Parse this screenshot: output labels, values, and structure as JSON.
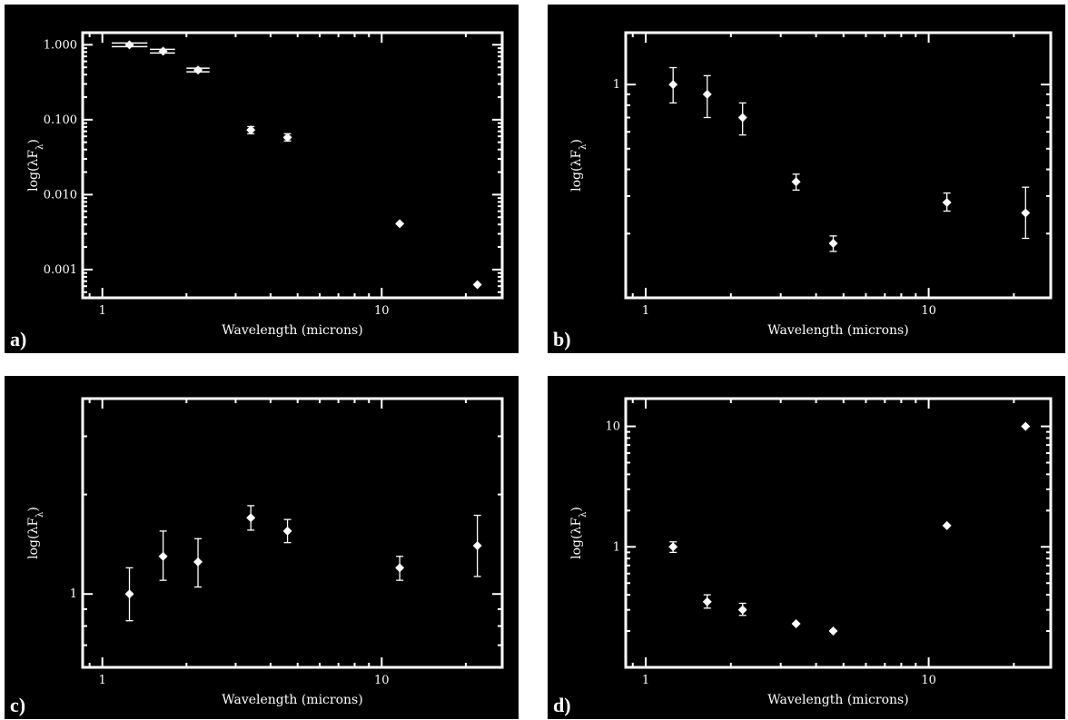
{
  "chart_data": [
    {
      "type": "scatter",
      "panel_label": "a)",
      "xlabel": "Wavelength (microns)",
      "ylabel": "log(λF",
      "ylabel_sub": "λ",
      "ylabel_close": ")",
      "xscale": "log",
      "yscale": "log",
      "xlim": [
        0.85,
        27
      ],
      "ylim": [
        0.00042,
        1.45
      ],
      "xticks": [
        {
          "v": 1,
          "label": "1"
        },
        {
          "v": 10,
          "label": "10"
        }
      ],
      "yticks": [
        {
          "v": 1,
          "label": "1.000"
        },
        {
          "v": 0.1,
          "label": "0.100"
        },
        {
          "v": 0.01,
          "label": "0.010"
        },
        {
          "v": 0.001,
          "label": "0.001"
        }
      ],
      "points": [
        {
          "x": 1.25,
          "y": 1.0,
          "xlo": 1.08,
          "xhi": 1.45
        },
        {
          "x": 1.65,
          "y": 0.82,
          "xlo": 1.48,
          "xhi": 1.82
        },
        {
          "x": 2.2,
          "y": 0.46,
          "xlo": 2.0,
          "xhi": 2.42
        },
        {
          "x": 3.4,
          "y": 0.073,
          "ylo": 0.065,
          "yhi": 0.081
        },
        {
          "x": 4.6,
          "y": 0.058,
          "ylo": 0.052,
          "yhi": 0.065
        },
        {
          "x": 11.6,
          "y": 0.0041
        },
        {
          "x": 22.0,
          "y": 0.00063
        }
      ]
    },
    {
      "type": "scatter",
      "panel_label": "b)",
      "xlabel": "Wavelength (microns)",
      "ylabel": "log(λF",
      "ylabel_sub": "λ",
      "ylabel_close": ")",
      "xscale": "log",
      "yscale": "log",
      "xlim": [
        0.85,
        27
      ],
      "ylim": [
        0.1,
        1.75
      ],
      "xticks": [
        {
          "v": 1,
          "label": "1"
        },
        {
          "v": 10,
          "label": "10"
        }
      ],
      "yticks": [
        {
          "v": 1,
          "label": "1"
        }
      ],
      "points": [
        {
          "x": 1.25,
          "y": 1.0,
          "ylo": 0.82,
          "yhi": 1.2
        },
        {
          "x": 1.65,
          "y": 0.9,
          "ylo": 0.7,
          "yhi": 1.1
        },
        {
          "x": 2.2,
          "y": 0.7,
          "ylo": 0.58,
          "yhi": 0.82
        },
        {
          "x": 3.4,
          "y": 0.35,
          "ylo": 0.32,
          "yhi": 0.38
        },
        {
          "x": 4.6,
          "y": 0.18,
          "ylo": 0.165,
          "yhi": 0.195
        },
        {
          "x": 11.6,
          "y": 0.28,
          "ylo": 0.255,
          "yhi": 0.31
        },
        {
          "x": 22.0,
          "y": 0.25,
          "ylo": 0.19,
          "yhi": 0.33
        }
      ]
    },
    {
      "type": "scatter",
      "panel_label": "c)",
      "xlabel": "Wavelength (microns)",
      "ylabel": "log(λF",
      "ylabel_sub": "λ",
      "ylabel_close": ")",
      "xscale": "log",
      "yscale": "log",
      "xlim": [
        0.85,
        27
      ],
      "ylim": [
        0.6,
        3.9
      ],
      "xticks": [
        {
          "v": 1,
          "label": "1"
        },
        {
          "v": 10,
          "label": "10"
        }
      ],
      "yticks": [
        {
          "v": 1,
          "label": "1"
        }
      ],
      "points": [
        {
          "x": 1.25,
          "y": 1.0,
          "ylo": 0.83,
          "yhi": 1.2
        },
        {
          "x": 1.65,
          "y": 1.3,
          "ylo": 1.1,
          "yhi": 1.55
        },
        {
          "x": 2.2,
          "y": 1.25,
          "ylo": 1.05,
          "yhi": 1.47
        },
        {
          "x": 3.4,
          "y": 1.7,
          "ylo": 1.56,
          "yhi": 1.85
        },
        {
          "x": 4.6,
          "y": 1.55,
          "ylo": 1.43,
          "yhi": 1.68
        },
        {
          "x": 11.6,
          "y": 1.2,
          "ylo": 1.1,
          "yhi": 1.3
        },
        {
          "x": 22.0,
          "y": 1.4,
          "ylo": 1.13,
          "yhi": 1.73
        }
      ]
    },
    {
      "type": "scatter",
      "panel_label": "d)",
      "xlabel": "Wavelength (microns)",
      "ylabel": "log(λF",
      "ylabel_sub": "λ",
      "ylabel_close": ")",
      "xscale": "log",
      "yscale": "log",
      "xlim": [
        0.85,
        27
      ],
      "ylim": [
        0.1,
        17
      ],
      "xticks": [
        {
          "v": 1,
          "label": "1"
        },
        {
          "v": 10,
          "label": "10"
        }
      ],
      "yticks": [
        {
          "v": 10,
          "label": "10"
        },
        {
          "v": 1,
          "label": "1"
        }
      ],
      "points": [
        {
          "x": 1.25,
          "y": 1.0,
          "ylo": 0.9,
          "yhi": 1.1
        },
        {
          "x": 1.65,
          "y": 0.35,
          "ylo": 0.31,
          "yhi": 0.4
        },
        {
          "x": 2.2,
          "y": 0.3,
          "ylo": 0.27,
          "yhi": 0.34
        },
        {
          "x": 3.4,
          "y": 0.23
        },
        {
          "x": 4.6,
          "y": 0.2
        },
        {
          "x": 11.6,
          "y": 1.5
        },
        {
          "x": 22.0,
          "y": 10.0
        }
      ]
    }
  ]
}
